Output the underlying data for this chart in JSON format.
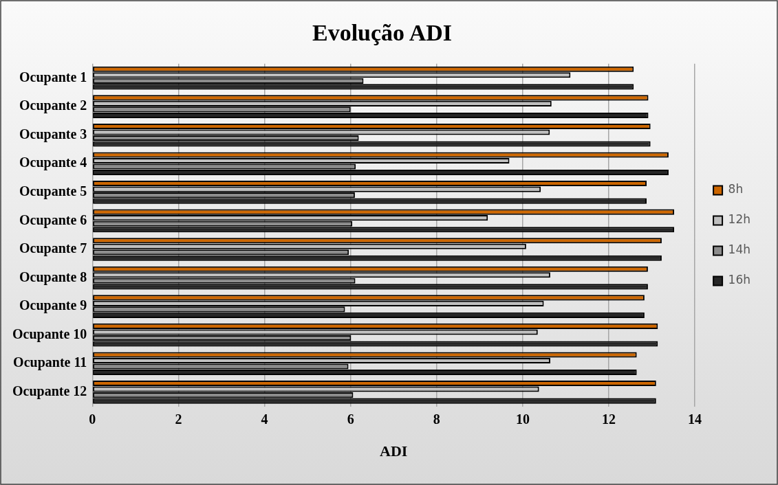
{
  "chart_data": {
    "type": "bar",
    "orientation": "horizontal",
    "title": "Evolução ADI",
    "xlabel": "ADI",
    "categories": [
      "Ocupante 1",
      "Ocupante 2",
      "Ocupante 3",
      "Ocupante 4",
      "Ocupante 5",
      "Ocupante 6",
      "Ocupante 7",
      "Ocupante 8",
      "Ocupante 9",
      "Ocupante 10",
      "Ocupante 11",
      "Ocupante 12"
    ],
    "series": [
      {
        "name": "8h",
        "color": "#cc6600",
        "values": [
          12.58,
          12.92,
          12.97,
          13.39,
          12.88,
          13.52,
          13.23,
          12.91,
          12.83,
          13.14,
          12.65,
          13.1
        ]
      },
      {
        "name": "12h",
        "color": "#bfbfbf",
        "values": [
          11.11,
          10.67,
          10.63,
          9.69,
          10.42,
          9.19,
          10.08,
          10.64,
          10.49,
          10.35,
          10.64,
          10.38
        ]
      },
      {
        "name": "14h",
        "color": "#8c8c8c",
        "values": [
          6.3,
          6.0,
          6.19,
          6.12,
          6.1,
          6.04,
          5.96,
          6.11,
          5.87,
          6.01,
          5.95,
          6.06
        ]
      },
      {
        "name": "16h",
        "color": "#262626",
        "values": [
          12.58,
          12.92,
          12.97,
          13.39,
          12.88,
          13.52,
          13.23,
          12.91,
          12.83,
          13.14,
          12.65,
          13.1
        ]
      }
    ],
    "xlim": [
      0,
      14
    ],
    "xticks": [
      0,
      2,
      4,
      6,
      8,
      10,
      12,
      14
    ],
    "grid": "x",
    "legend": "right"
  }
}
